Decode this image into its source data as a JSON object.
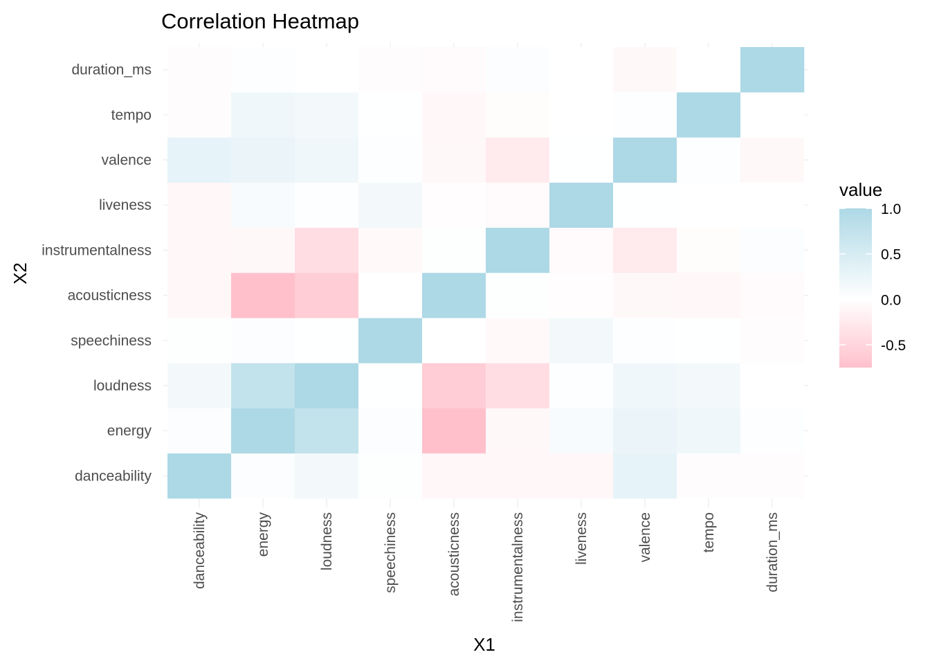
{
  "chart_data": {
    "type": "heatmap",
    "title": "Correlation Heatmap",
    "xlabel": "X1",
    "ylabel": "X2",
    "x_categories": [
      "danceability",
      "energy",
      "loudness",
      "speechiness",
      "acousticness",
      "instrumentalness",
      "liveness",
      "valence",
      "tempo",
      "duration_ms"
    ],
    "y_categories": [
      "danceability",
      "energy",
      "loudness",
      "speechiness",
      "acousticness",
      "instrumentalness",
      "liveness",
      "valence",
      "tempo",
      "duration_ms"
    ],
    "values": [
      [
        1.0,
        0.05,
        0.15,
        0.03,
        -0.1,
        -0.1,
        -0.1,
        0.3,
        -0.03,
        -0.03
      ],
      [
        0.05,
        1.0,
        0.75,
        0.05,
        -0.75,
        -0.08,
        0.1,
        0.25,
        0.2,
        0.02
      ],
      [
        0.15,
        0.75,
        1.0,
        0.01,
        -0.6,
        -0.4,
        0.02,
        0.2,
        0.15,
        0.0
      ],
      [
        0.03,
        0.05,
        0.01,
        1.0,
        0.0,
        -0.07,
        0.15,
        0.02,
        0.01,
        -0.03
      ],
      [
        -0.1,
        -0.75,
        -0.6,
        0.0,
        1.0,
        0.03,
        -0.02,
        -0.08,
        -0.1,
        -0.06
      ],
      [
        -0.1,
        -0.08,
        -0.4,
        -0.07,
        0.03,
        1.0,
        -0.06,
        -0.25,
        -0.04,
        0.05
      ],
      [
        -0.1,
        0.1,
        0.02,
        0.15,
        -0.02,
        -0.06,
        1.0,
        0.01,
        0.0,
        0.0
      ],
      [
        0.3,
        0.25,
        0.2,
        0.02,
        -0.08,
        -0.25,
        0.01,
        1.0,
        0.02,
        -0.08
      ],
      [
        -0.03,
        0.2,
        0.15,
        0.01,
        -0.1,
        -0.04,
        0.0,
        0.02,
        1.0,
        0.0
      ],
      [
        -0.03,
        0.02,
        0.0,
        -0.03,
        -0.06,
        0.05,
        0.0,
        -0.08,
        0.0,
        1.0
      ]
    ],
    "color_scale": {
      "low": "#ffc0cb",
      "mid": "#ffffff",
      "high": "#add8e6",
      "min": -0.75,
      "max": 1.0
    },
    "legend": {
      "title": "value",
      "ticks": [
        1.0,
        0.5,
        0.0,
        -0.5
      ],
      "tick_labels": [
        "1.0",
        "0.5",
        "0.0",
        "-0.5"
      ],
      "placement": "right"
    },
    "grid": true
  }
}
